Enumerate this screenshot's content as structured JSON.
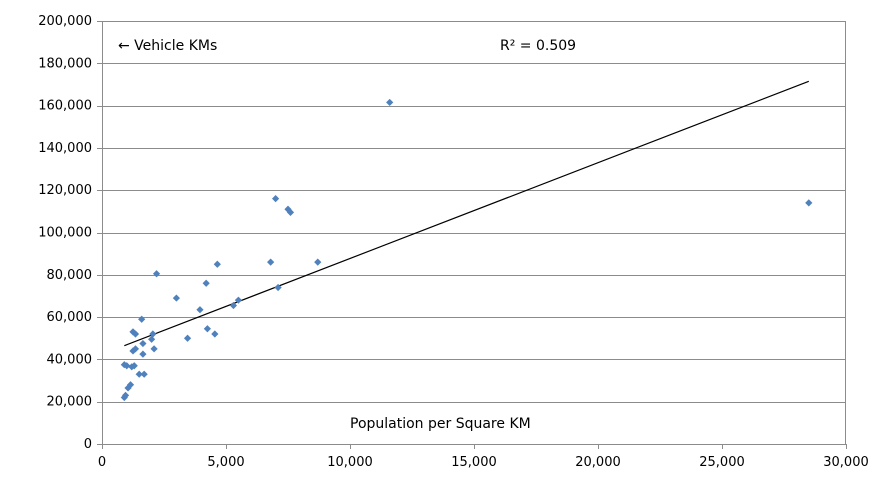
{
  "chart_data": {
    "type": "scatter",
    "xlim": [
      0,
      30000
    ],
    "ylim": [
      0,
      200000
    ],
    "x_ticks": [
      "0",
      "5,000",
      "10,000",
      "15,000",
      "20,000",
      "25,000",
      "30,000"
    ],
    "y_ticks": [
      "0",
      "20,000",
      "40,000",
      "60,000",
      "80,000",
      "100,000",
      "120,000",
      "140,000",
      "160,000",
      "180,000",
      "200,000"
    ],
    "x_tick_values": [
      0,
      5000,
      10000,
      15000,
      20000,
      25000,
      30000
    ],
    "y_tick_values": [
      0,
      20000,
      40000,
      60000,
      80000,
      100000,
      120000,
      140000,
      160000,
      180000,
      200000
    ],
    "xlabel": "Population per Square KM",
    "ylabel": "← Vehicle KMs",
    "grid": "horizontal",
    "annotation": "R² = 0.509",
    "colors": {
      "points": "#4f81bd",
      "trendline": "#000000",
      "grid": "#8c8c8c"
    },
    "points": [
      [
        900,
        22000
      ],
      [
        950,
        23000
      ],
      [
        900,
        37500
      ],
      [
        1000,
        37000
      ],
      [
        1050,
        26500
      ],
      [
        1150,
        28000
      ],
      [
        1200,
        36500
      ],
      [
        1300,
        37000
      ],
      [
        1250,
        44000
      ],
      [
        1350,
        45000
      ],
      [
        1250,
        53000
      ],
      [
        1350,
        52000
      ],
      [
        1500,
        33000
      ],
      [
        1600,
        59000
      ],
      [
        1650,
        47500
      ],
      [
        1650,
        42500
      ],
      [
        1700,
        33000
      ],
      [
        2000,
        49500
      ],
      [
        2050,
        52000
      ],
      [
        2100,
        45000
      ],
      [
        2200,
        80500
      ],
      [
        3000,
        69000
      ],
      [
        3450,
        50000
      ],
      [
        3950,
        63500
      ],
      [
        4200,
        76000
      ],
      [
        4250,
        54500
      ],
      [
        4550,
        52000
      ],
      [
        4650,
        85000
      ],
      [
        5300,
        65500
      ],
      [
        5500,
        68000
      ],
      [
        6800,
        86000
      ],
      [
        7000,
        116000
      ],
      [
        7100,
        74000
      ],
      [
        7500,
        111000
      ],
      [
        7600,
        109500
      ],
      [
        8700,
        86000
      ],
      [
        11600,
        161500
      ],
      [
        28500,
        114000
      ]
    ],
    "trendline": {
      "x": [
        900,
        28500
      ],
      "y": [
        46500,
        171500
      ]
    }
  }
}
